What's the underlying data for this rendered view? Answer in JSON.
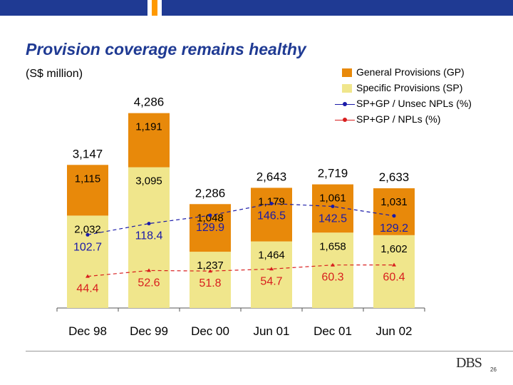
{
  "header": {
    "title": "Provision coverage remains healthy",
    "unit": "(S$ million)",
    "bar_colors": [
      "#1f3a93",
      "#ff9900",
      "#1f3a93",
      "#ff9900",
      "#1f3a93",
      "#ff9900"
    ]
  },
  "legend": {
    "items": [
      {
        "label": "General Provisions (GP)",
        "kind": "swatch",
        "color": "#e8890a"
      },
      {
        "label": "Specific Provisions (SP)",
        "kind": "swatch",
        "color": "#f0e68c"
      },
      {
        "label": "SP+GP / Unsec NPLs (%)",
        "kind": "line",
        "color": "#1a1aa8"
      },
      {
        "label": "SP+GP / NPLs (%)",
        "kind": "line",
        "color": "#d81e1e"
      }
    ]
  },
  "chart_data": {
    "type": "bar",
    "stacked": true,
    "categories": [
      "Dec 98",
      "Dec 99",
      "Dec 00",
      "Jun 01",
      "Dec 01",
      "Jun 02"
    ],
    "series": [
      {
        "name": "Specific Provisions (SP)",
        "values": [
          2032,
          3095,
          1237,
          1464,
          1658,
          1602
        ],
        "color": "#f0e68c"
      },
      {
        "name": "General Provisions (GP)",
        "values": [
          1115,
          1191,
          1048,
          1179,
          1061,
          1031
        ],
        "color": "#e8890a"
      }
    ],
    "totals": [
      "3,147",
      "4,286",
      "2,286",
      "2,643",
      "2,719",
      "2,633"
    ],
    "sp_labels": [
      "2,032",
      "3,095",
      "1,237",
      "1,464",
      "1,658",
      "1,602"
    ],
    "gp_labels": [
      "1,115",
      "1,191",
      "1,048",
      "1,179",
      "1,061",
      "1,031"
    ],
    "lines": [
      {
        "name": "SP+GP / Unsec NPLs (%)",
        "values": [
          102.7,
          118.4,
          129.9,
          146.5,
          142.5,
          129.2
        ],
        "labels": [
          "102.7",
          "118.4",
          "129.9",
          "146.5",
          "142.5",
          "129.2"
        ],
        "color": "#1a1aa8"
      },
      {
        "name": "SP+GP / NPLs (%)",
        "values": [
          44.4,
          52.6,
          51.8,
          54.7,
          60.3,
          60.4
        ],
        "labels": [
          "44.4",
          "52.6",
          "51.8",
          "54.7",
          "60.3",
          "60.4"
        ],
        "color": "#d81e1e"
      }
    ],
    "ylim": [
      0,
      4500
    ],
    "grid": false,
    "legend_position": "top-right"
  },
  "footer": {
    "logo": "DBS",
    "page_number": "26"
  }
}
